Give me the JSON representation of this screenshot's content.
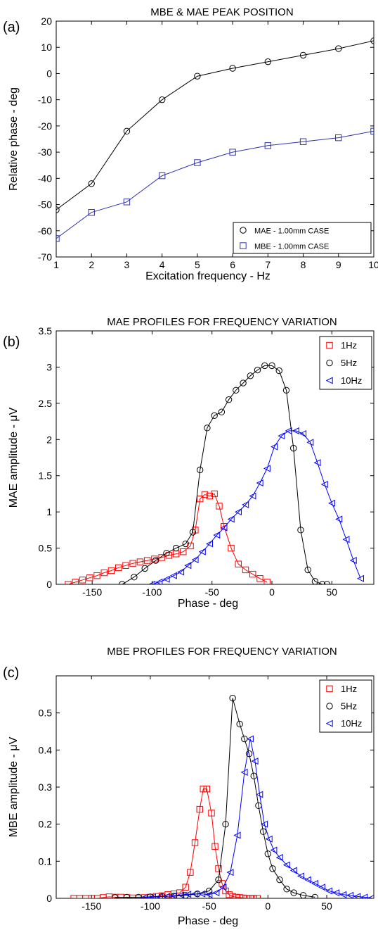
{
  "chart_data": [
    {
      "panel": "(a)",
      "type": "line",
      "title": "MBE & MAE PEAK POSITION",
      "xlabel": "Excitation frequency - Hz",
      "ylabel": "Relative phase - deg",
      "xlim": [
        1,
        10
      ],
      "ylim": [
        -70,
        20
      ],
      "xticks": [
        1,
        2,
        3,
        4,
        5,
        6,
        7,
        8,
        9,
        10
      ],
      "yticks": [
        -70,
        -60,
        -50,
        -40,
        -30,
        -20,
        -10,
        0,
        10,
        20
      ],
      "legend_position": "bottom-right",
      "series": [
        {
          "name": "MAE - 1.00mm CASE",
          "color": "#000000",
          "marker": "circle",
          "x": [
            1,
            2,
            3,
            4,
            5,
            6,
            7,
            8,
            9,
            10
          ],
          "y": [
            -52,
            -42,
            -22,
            -10,
            -1,
            2,
            4.5,
            7,
            9.5,
            12.5
          ]
        },
        {
          "name": "MBE - 1.00mm CASE",
          "color": "#3333aa",
          "marker": "square",
          "x": [
            1,
            2,
            3,
            4,
            5,
            6,
            7,
            8,
            9,
            10
          ],
          "y": [
            -63,
            -53,
            -49,
            -39,
            -34,
            -30,
            -27.5,
            -26,
            -24.5,
            -22
          ]
        }
      ]
    },
    {
      "panel": "(b)",
      "type": "line",
      "title": "MAE PROFILES FOR FREQUENCY VARIATION",
      "xlabel": "Phase - deg",
      "ylabel": "MAE amplitude - μV",
      "xlim": [
        -180,
        85
      ],
      "ylim": [
        0,
        3.5
      ],
      "xticks": [
        -150,
        -100,
        -50,
        0,
        50
      ],
      "yticks": [
        0,
        0.5,
        1,
        1.5,
        2,
        2.5,
        3,
        3.5
      ],
      "legend_position": "top-right",
      "series": [
        {
          "name": "1Hz",
          "color": "#ff0000",
          "marker": "square",
          "x": [
            -170,
            -164,
            -158,
            -152,
            -146,
            -140,
            -134,
            -128,
            -122,
            -116,
            -110,
            -104,
            -98,
            -92,
            -86,
            -80,
            -74,
            -68,
            -64,
            -60,
            -56,
            -52,
            -48,
            -44,
            -40,
            -34,
            -28,
            -22,
            -16,
            -10,
            -4
          ],
          "y": [
            0,
            0.03,
            0.06,
            0.09,
            0.12,
            0.16,
            0.19,
            0.23,
            0.26,
            0.29,
            0.31,
            0.33,
            0.35,
            0.37,
            0.4,
            0.42,
            0.45,
            0.53,
            0.75,
            1.18,
            1.24,
            1.22,
            1.25,
            1.08,
            0.8,
            0.5,
            0.28,
            0.2,
            0.14,
            0.08,
            0.03
          ]
        },
        {
          "name": "5Hz",
          "color": "#000000",
          "marker": "circle",
          "x": [
            -125,
            -115,
            -106,
            -97,
            -88,
            -80,
            -72,
            -66,
            -60,
            -54,
            -48,
            -42,
            -36,
            -30,
            -24,
            -18,
            -12,
            -6,
            0,
            6,
            12,
            18,
            24,
            30,
            36,
            42,
            46
          ],
          "y": [
            0,
            0.1,
            0.22,
            0.33,
            0.43,
            0.5,
            0.56,
            0.72,
            1.58,
            2.16,
            2.33,
            2.38,
            2.55,
            2.68,
            2.78,
            2.88,
            2.96,
            3.02,
            3.02,
            2.95,
            2.68,
            1.88,
            0.75,
            0.2,
            0.04,
            0,
            0
          ]
        },
        {
          "name": "10Hz",
          "color": "#0000ff",
          "marker": "triangle-left",
          "x": [
            -100,
            -94,
            -88,
            -82,
            -76,
            -70,
            -64,
            -58,
            -52,
            -46,
            -40,
            -34,
            -28,
            -22,
            -16,
            -10,
            -4,
            2,
            8,
            14,
            20,
            26,
            32,
            38,
            44,
            50,
            56,
            62,
            68,
            74
          ],
          "y": [
            0,
            0.03,
            0.07,
            0.12,
            0.17,
            0.26,
            0.34,
            0.45,
            0.56,
            0.68,
            0.78,
            0.9,
            1.0,
            1.1,
            1.22,
            1.4,
            1.6,
            1.9,
            2.05,
            2.12,
            2.12,
            2.08,
            1.96,
            1.68,
            1.38,
            1.12,
            0.9,
            0.62,
            0.33,
            0.08
          ]
        }
      ]
    },
    {
      "panel": "(c)",
      "type": "line",
      "title": "MBE PROFILES FOR FREQUENCY VARIATION",
      "xlabel": "Phase - deg",
      "ylabel": "MBE amplitude - μV",
      "xlim": [
        -180,
        90
      ],
      "ylim": [
        0,
        0.6
      ],
      "xticks": [
        -150,
        -100,
        -50,
        0,
        50
      ],
      "yticks": [
        0,
        0.1,
        0.2,
        0.3,
        0.4,
        0.5
      ],
      "legend_position": "top-right",
      "series": [
        {
          "name": "1Hz",
          "color": "#ff0000",
          "marker": "square",
          "x": [
            -165,
            -160,
            -155,
            -150,
            -145,
            -140,
            -135,
            -130,
            -125,
            -120,
            -115,
            -110,
            -105,
            -100,
            -95,
            -90,
            -85,
            -80,
            -75,
            -70,
            -66,
            -62,
            -58,
            -55,
            -52,
            -48,
            -45,
            -42,
            -39,
            -36,
            -33,
            -30,
            -27,
            -24,
            -21,
            -18,
            -15,
            -12,
            -9
          ],
          "y": [
            0,
            0,
            0,
            0,
            0,
            0.002,
            0.004,
            0.003,
            0.003,
            0.002,
            0.001,
            0.001,
            0.002,
            0.003,
            0.005,
            0.007,
            0.01,
            0.012,
            0.015,
            0.03,
            0.07,
            0.15,
            0.24,
            0.295,
            0.295,
            0.23,
            0.14,
            0.08,
            0.04,
            0.02,
            0.01,
            0.005,
            0.003,
            0.002,
            0.001,
            0,
            0,
            0,
            0
          ]
        },
        {
          "name": "5Hz",
          "color": "#000000",
          "marker": "circle",
          "x": [
            -130,
            -120,
            -110,
            -100,
            -90,
            -80,
            -70,
            -60,
            -50,
            -42,
            -36,
            -30,
            -24,
            -20,
            -16,
            -12,
            -8,
            -4,
            0,
            4,
            10,
            16,
            22,
            30,
            40
          ],
          "y": [
            0.002,
            0.003,
            0.003,
            0.004,
            0.005,
            0.006,
            0.008,
            0.012,
            0.02,
            0.05,
            0.2,
            0.54,
            0.47,
            0.43,
            0.39,
            0.33,
            0.25,
            0.18,
            0.12,
            0.08,
            0.05,
            0.025,
            0.015,
            0.008,
            0.003
          ]
        },
        {
          "name": "10Hz",
          "color": "#0000ff",
          "marker": "triangle-left",
          "x": [
            -105,
            -98,
            -92,
            -86,
            -80,
            -74,
            -68,
            -62,
            -56,
            -50,
            -44,
            -38,
            -32,
            -26,
            -20,
            -15,
            -11,
            -7,
            -3,
            1,
            5,
            10,
            16,
            22,
            28,
            34,
            40,
            46,
            52,
            58,
            64,
            70,
            76,
            82,
            88
          ],
          "y": [
            0.002,
            0.003,
            0.004,
            0.005,
            0.007,
            0.009,
            0.011,
            0.012,
            0.012,
            0.01,
            0.015,
            0.03,
            0.07,
            0.17,
            0.34,
            0.43,
            0.37,
            0.28,
            0.2,
            0.16,
            0.13,
            0.11,
            0.09,
            0.075,
            0.06,
            0.05,
            0.04,
            0.03,
            0.02,
            0.015,
            0.01,
            0.008,
            0.005,
            0.003,
            0.001
          ]
        }
      ]
    }
  ]
}
